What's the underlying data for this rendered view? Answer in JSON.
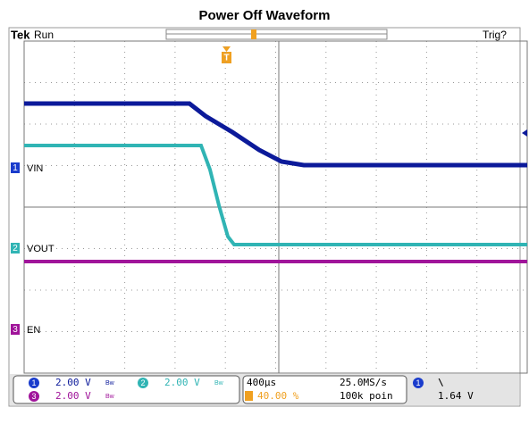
{
  "title": "Power Off Waveform",
  "header": {
    "brand": "Tek",
    "state": "Run",
    "trigger_state": "Trig?",
    "trigger_marker": "T"
  },
  "channels": [
    {
      "number": "1",
      "label": "VIN"
    },
    {
      "number": "2",
      "label": "VOUT"
    },
    {
      "number": "3",
      "label": "EN"
    }
  ],
  "readout": {
    "ch1": {
      "number": "1",
      "scale": "2.00 V",
      "bw": "Bw"
    },
    "ch2": {
      "number": "2",
      "scale": "2.00 V",
      "bw": "Bw"
    },
    "ch3": {
      "number": "3",
      "scale": "2.00 V",
      "bw": "Bw"
    },
    "timebase": "400µs",
    "sample_rate": "25.0MS/s",
    "trigger_position": "40.00 %",
    "record_length": "100k poin",
    "trigger_source": "1",
    "trigger_slope": "\\",
    "trigger_level": "1.64 V"
  }
}
